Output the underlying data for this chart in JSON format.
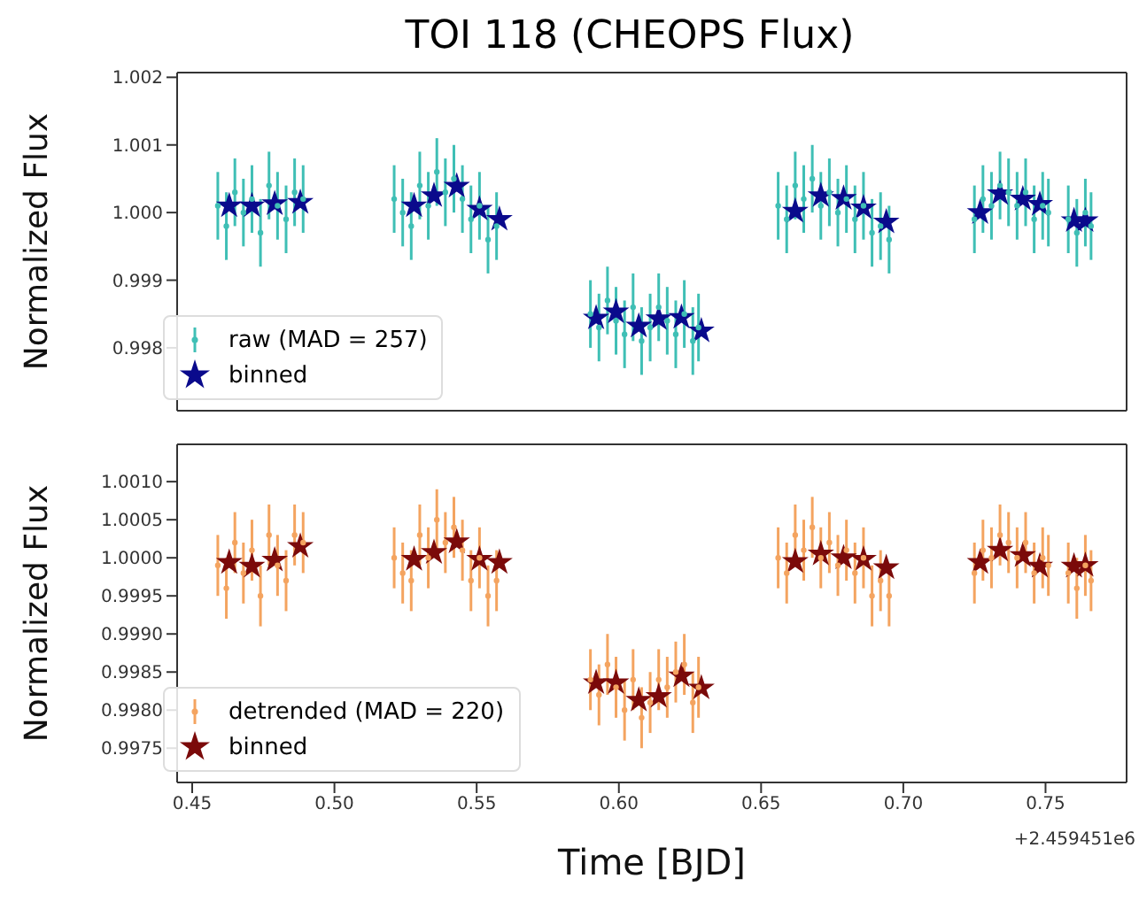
{
  "chart_data": [
    {
      "type": "scatter",
      "title": "TOI 118 (CHEOPS Flux)",
      "ylabel": "Normalized Flux",
      "xlim": [
        0.4447,
        0.7785
      ],
      "xticks": [
        0.45,
        0.5,
        0.55,
        0.6,
        0.65,
        0.7,
        0.75
      ],
      "ylim": [
        0.99707,
        1.00207
      ],
      "yticks": [
        0.998,
        0.999,
        {
          "value": 1.0,
          "label": "1.000"
        },
        1.001,
        1.002
      ],
      "tick_labels": "y",
      "grid": false,
      "legend": "lower left",
      "series": [
        {
          "name": "raw (MAD = 257)",
          "color": "#3fbfb5",
          "marker": "circle",
          "x": [
            0.459,
            0.462,
            0.465,
            0.468,
            0.471,
            0.474,
            0.477,
            0.48,
            0.483,
            0.486,
            0.489,
            0.521,
            0.524,
            0.527,
            0.53,
            0.533,
            0.536,
            0.539,
            0.542,
            0.545,
            0.548,
            0.551,
            0.554,
            0.557,
            0.59,
            0.593,
            0.596,
            0.599,
            0.602,
            0.605,
            0.608,
            0.611,
            0.614,
            0.617,
            0.62,
            0.623,
            0.626,
            0.628,
            0.656,
            0.659,
            0.662,
            0.665,
            0.668,
            0.671,
            0.674,
            0.677,
            0.68,
            0.683,
            0.686,
            0.689,
            0.692,
            0.695,
            0.725,
            0.728,
            0.731,
            0.734,
            0.737,
            0.74,
            0.743,
            0.746,
            0.749,
            0.751,
            0.758,
            0.761,
            0.764,
            0.766
          ],
          "values": [
            1.0001,
            0.9998,
            1.0003,
            1.0,
            1.0002,
            0.9997,
            1.0004,
            1.0001,
            0.9999,
            1.0003,
            1.0002,
            1.0002,
            1.0,
            0.9998,
            1.0004,
            1.0001,
            1.0006,
            1.0003,
            1.0005,
            1.0002,
            0.9999,
            1.0001,
            0.9996,
            0.9998,
            0.9985,
            0.9983,
            0.9987,
            0.9984,
            0.9982,
            0.9986,
            0.9981,
            0.9983,
            0.9986,
            0.9984,
            0.9982,
            0.9985,
            0.9981,
            0.9983,
            1.0001,
            0.9999,
            1.0004,
            1.0002,
            1.0005,
            1.0001,
            1.0003,
            1.0,
            1.0002,
            0.9999,
            1.0001,
            0.9997,
            0.9998,
            0.9996,
            0.9999,
            1.0002,
            1.0001,
            1.0004,
            1.0003,
            1.0001,
            1.0003,
            0.9999,
            1.0001,
            1.0,
            0.9999,
            0.9997,
            1.0,
            0.9998
          ],
          "errors": [
            0.0005,
            0.0005,
            0.0005,
            0.0005,
            0.0005,
            0.0005,
            0.0005,
            0.0005,
            0.0005,
            0.0005,
            0.0005,
            0.0005,
            0.0005,
            0.0005,
            0.0005,
            0.0005,
            0.0005,
            0.0005,
            0.0005,
            0.0005,
            0.0005,
            0.0005,
            0.0005,
            0.0005,
            0.0005,
            0.0005,
            0.0005,
            0.0005,
            0.0005,
            0.0005,
            0.0005,
            0.0005,
            0.0005,
            0.0005,
            0.0005,
            0.0005,
            0.0005,
            0.0005,
            0.0005,
            0.0005,
            0.0005,
            0.0005,
            0.0005,
            0.0005,
            0.0005,
            0.0005,
            0.0005,
            0.0005,
            0.0005,
            0.0005,
            0.0005,
            0.0005,
            0.0005,
            0.0005,
            0.0005,
            0.0005,
            0.0005,
            0.0005,
            0.0005,
            0.0005,
            0.0005,
            0.0005,
            0.0005,
            0.0005,
            0.0005,
            0.0005
          ]
        },
        {
          "name": "binned",
          "color": "#0a0a8c",
          "marker": "star",
          "x": [
            0.463,
            0.471,
            0.479,
            0.488,
            0.528,
            0.535,
            0.543,
            0.551,
            0.558,
            0.592,
            0.599,
            0.607,
            0.614,
            0.622,
            0.629,
            0.662,
            0.671,
            0.679,
            0.686,
            0.694,
            0.727,
            0.734,
            0.742,
            0.748,
            0.76,
            0.764
          ],
          "values": [
            1.0001,
            1.0001,
            1.00013,
            1.00015,
            1.0001,
            1.00025,
            1.00039,
            1.00005,
            0.9999,
            0.99844,
            0.99853,
            0.99832,
            0.99843,
            0.99845,
            0.99825,
            1.00002,
            1.00025,
            1.00021,
            1.00007,
            0.99986,
            1.0,
            1.00028,
            1.0002,
            1.00012,
            0.99988,
            0.99988
          ]
        }
      ]
    },
    {
      "type": "scatter",
      "xlabel": "Time [BJD]",
      "ylabel": "Normalized Flux",
      "annotations": [
        "+2.459451e6"
      ],
      "xlim": [
        0.4447,
        0.7785
      ],
      "xticks": [
        0.45,
        {
          "value": 0.5,
          "label": "0.50"
        },
        0.55,
        {
          "value": 0.6,
          "label": "0.60"
        },
        0.65,
        {
          "value": 0.7,
          "label": "0.70"
        },
        0.75
      ],
      "ylim": [
        0.99705,
        1.00149
      ],
      "yticks": [
        0.9975,
        {
          "value": 0.998,
          "label": "0.9980"
        },
        0.9985,
        {
          "value": 0.999,
          "label": "0.9990"
        },
        0.9995,
        {
          "value": 1.0,
          "label": "1.0000"
        },
        1.0005,
        {
          "value": 1.001,
          "label": "1.0010"
        }
      ],
      "grid": false,
      "legend": "lower left",
      "series": [
        {
          "name": "detrended (MAD = 220)",
          "color": "#f4a460",
          "marker": "circle",
          "x": [
            0.459,
            0.462,
            0.465,
            0.468,
            0.471,
            0.474,
            0.477,
            0.48,
            0.483,
            0.486,
            0.489,
            0.521,
            0.524,
            0.527,
            0.53,
            0.533,
            0.536,
            0.539,
            0.542,
            0.545,
            0.548,
            0.551,
            0.554,
            0.557,
            0.59,
            0.593,
            0.596,
            0.599,
            0.602,
            0.605,
            0.608,
            0.611,
            0.614,
            0.617,
            0.62,
            0.623,
            0.626,
            0.628,
            0.656,
            0.659,
            0.662,
            0.665,
            0.668,
            0.671,
            0.674,
            0.677,
            0.68,
            0.683,
            0.686,
            0.689,
            0.692,
            0.695,
            0.725,
            0.728,
            0.731,
            0.734,
            0.737,
            0.74,
            0.743,
            0.746,
            0.749,
            0.751,
            0.758,
            0.761,
            0.764,
            0.766
          ],
          "values": [
            0.9999,
            0.9996,
            1.0002,
            0.9998,
            1.0001,
            0.9995,
            1.0003,
            0.9999,
            0.9997,
            1.0003,
            1.0002,
            1.0,
            0.9998,
            0.9997,
            1.0003,
            1.0,
            1.0005,
            1.0002,
            1.0004,
            1.0001,
            0.9997,
            1.0,
            0.9995,
            0.9997,
            0.9984,
            0.9982,
            0.9986,
            0.9983,
            0.998,
            0.9984,
            0.9979,
            0.9981,
            0.9984,
            0.9983,
            0.9985,
            0.9986,
            0.9981,
            0.9983,
            1.0,
            0.9998,
            1.0003,
            1.0001,
            1.0004,
            1.0,
            1.0002,
            0.9999,
            1.0001,
            0.9998,
            1.0,
            0.9995,
            0.9997,
            0.9995,
            0.9998,
            1.0001,
            1.0,
            1.0003,
            1.0002,
            1.0,
            1.0002,
            0.9998,
            1.0,
            0.9999,
            0.9998,
            0.9996,
            0.9999,
            0.9997
          ],
          "errors": [
            0.0004,
            0.0004,
            0.0004,
            0.0004,
            0.0004,
            0.0004,
            0.0004,
            0.0004,
            0.0004,
            0.0004,
            0.0004,
            0.0004,
            0.0004,
            0.0004,
            0.0004,
            0.0004,
            0.0004,
            0.0004,
            0.0004,
            0.0004,
            0.0004,
            0.0004,
            0.0004,
            0.0004,
            0.0004,
            0.0004,
            0.0004,
            0.0004,
            0.0004,
            0.0004,
            0.0004,
            0.0004,
            0.0004,
            0.0004,
            0.0004,
            0.0004,
            0.0004,
            0.0004,
            0.0004,
            0.0004,
            0.0004,
            0.0004,
            0.0004,
            0.0004,
            0.0004,
            0.0004,
            0.0004,
            0.0004,
            0.0004,
            0.0004,
            0.0004,
            0.0004,
            0.0004,
            0.0004,
            0.0004,
            0.0004,
            0.0004,
            0.0004,
            0.0004,
            0.0004,
            0.0004,
            0.0004,
            0.0004,
            0.0004,
            0.0004,
            0.0004
          ]
        },
        {
          "name": "binned",
          "color": "#7b0a0a",
          "marker": "star",
          "x": [
            0.463,
            0.471,
            0.479,
            0.488,
            0.528,
            0.535,
            0.543,
            0.551,
            0.558,
            0.592,
            0.599,
            0.607,
            0.614,
            0.622,
            0.629,
            0.662,
            0.671,
            0.679,
            0.686,
            0.694,
            0.727,
            0.734,
            0.742,
            0.748,
            0.76,
            0.764
          ],
          "values": [
            0.99994,
            0.99989,
            0.99997,
            1.00015,
            0.99998,
            1.00007,
            1.00021,
            0.99998,
            0.99994,
            0.99836,
            0.99836,
            0.99813,
            0.99818,
            0.99845,
            0.99829,
            0.99995,
            1.00005,
            1.0,
            0.99998,
            0.99987,
            0.99994,
            1.0001,
            1.00003,
            0.99989,
            0.99989,
            0.9999
          ]
        }
      ]
    }
  ]
}
